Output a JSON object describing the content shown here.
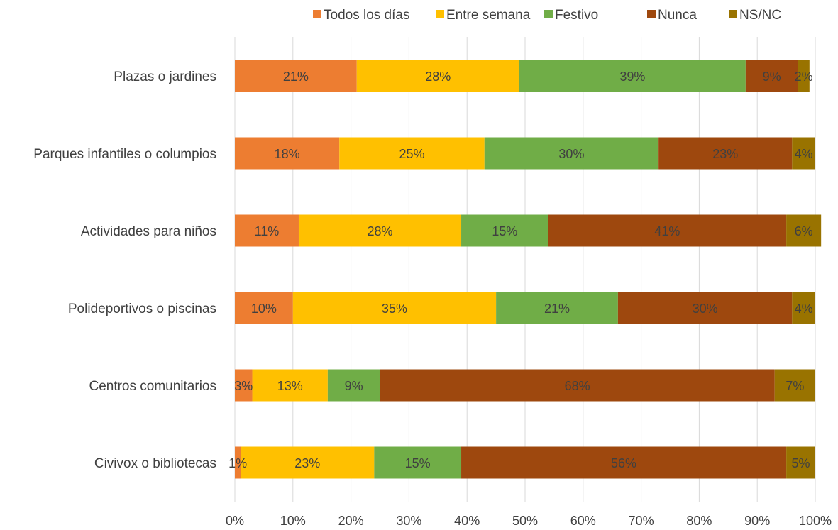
{
  "chart_data": {
    "type": "bar",
    "orientation": "horizontal",
    "stacked": true,
    "percent": true,
    "title": "",
    "xlabel": "",
    "ylabel": "",
    "xlim": [
      0,
      100
    ],
    "x_ticks": [
      "0%",
      "10%",
      "20%",
      "30%",
      "40%",
      "50%",
      "60%",
      "70%",
      "80%",
      "90%",
      "100%"
    ],
    "grid": true,
    "legend_position": "top",
    "categories": [
      "Plazas o jardines",
      "Parques infantiles o columpios",
      "Actividades para niños",
      "Polideportivos o piscinas",
      "Centros comunitarios",
      "Civivox o bibliotecas"
    ],
    "series": [
      {
        "name": "Todos los días",
        "color": "#ED7D31",
        "values": [
          21,
          18,
          11,
          10,
          3,
          1
        ],
        "labels": [
          "21%",
          "18%",
          "11%",
          "10%",
          "3%",
          "1%"
        ]
      },
      {
        "name": "Entre semana",
        "color": "#FFC000",
        "values": [
          28,
          25,
          28,
          35,
          13,
          23
        ],
        "labels": [
          "28%",
          "25%",
          "28%",
          "35%",
          "13%",
          "23%"
        ]
      },
      {
        "name": "Festivo",
        "color": "#70AD47",
        "values": [
          39,
          30,
          15,
          21,
          9,
          15
        ],
        "labels": [
          "39%",
          "30%",
          "15%",
          "21%",
          "9%",
          "15%"
        ]
      },
      {
        "name": "Nunca",
        "color": "#9E480E",
        "values": [
          9,
          23,
          41,
          30,
          68,
          56
        ],
        "labels": [
          "9%",
          "23%",
          "41%",
          "30%",
          "68%",
          "56%"
        ]
      },
      {
        "name": "NS/NC",
        "color": "#997300",
        "values": [
          2,
          4,
          6,
          4,
          7,
          5
        ],
        "labels": [
          "2%",
          "4%",
          "6%",
          "4%",
          "7%",
          "5%"
        ]
      }
    ]
  }
}
